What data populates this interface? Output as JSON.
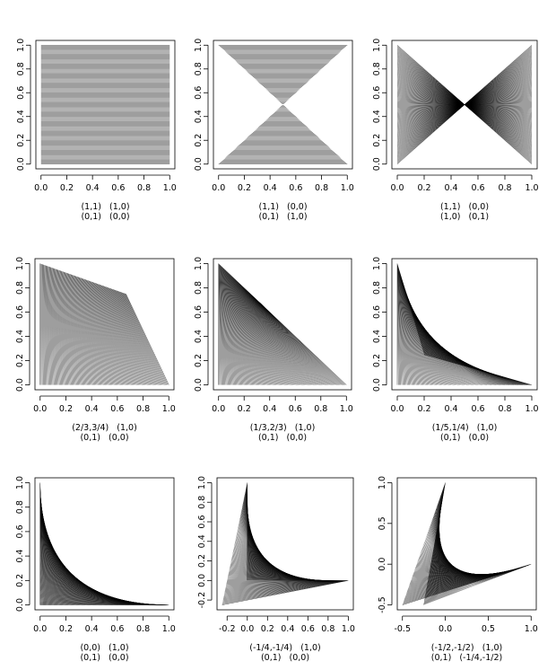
{
  "chart_data": [
    {
      "type": "ruled-surface",
      "id": "p1",
      "xlim": [
        0,
        1
      ],
      "ylim": [
        0,
        1
      ],
      "xticks": [
        "0.0",
        "0.2",
        "0.4",
        "0.6",
        "0.8",
        "1.0"
      ],
      "yticks": [
        "0.0",
        "0.2",
        "0.4",
        "0.6",
        "0.8",
        "1.0"
      ],
      "xtick_values": [
        0,
        0.2,
        0.4,
        0.6,
        0.8,
        1.0
      ],
      "ytick_values": [
        0,
        0.2,
        0.4,
        0.6,
        0.8,
        1.0
      ],
      "corners": {
        "top_left": [
          0,
          1
        ],
        "top_right": [
          1,
          1
        ],
        "bottom_left": [
          0,
          0
        ],
        "bottom_right": [
          1,
          0
        ]
      },
      "caption": [
        "(1,1)   (1,0)",
        "(0,1)   (0,0)"
      ]
    },
    {
      "type": "ruled-surface",
      "id": "p2",
      "xlim": [
        0,
        1
      ],
      "ylim": [
        0,
        1
      ],
      "xticks": [
        "0.0",
        "0.2",
        "0.4",
        "0.6",
        "0.8",
        "1.0"
      ],
      "yticks": [
        "0.0",
        "0.2",
        "0.4",
        "0.6",
        "0.8",
        "1.0"
      ],
      "xtick_values": [
        0,
        0.2,
        0.4,
        0.6,
        0.8,
        1.0
      ],
      "ytick_values": [
        0,
        0.2,
        0.4,
        0.6,
        0.8,
        1.0
      ],
      "corners": {
        "top_left": [
          0,
          1
        ],
        "top_right": [
          1,
          1
        ],
        "bottom_left": [
          1,
          0
        ],
        "bottom_right": [
          0,
          0
        ]
      },
      "caption": [
        "(1,1)   (0,0)",
        "(0,1)   (1,0)"
      ]
    },
    {
      "type": "ruled-surface",
      "id": "p3",
      "xlim": [
        0,
        1
      ],
      "ylim": [
        0,
        1
      ],
      "xticks": [
        "0.0",
        "0.2",
        "0.4",
        "0.6",
        "0.8",
        "1.0"
      ],
      "yticks": [
        "0.0",
        "0.2",
        "0.4",
        "0.6",
        "0.8",
        "1.0"
      ],
      "xtick_values": [
        0,
        0.2,
        0.4,
        0.6,
        0.8,
        1.0
      ],
      "ytick_values": [
        0,
        0.2,
        0.4,
        0.6,
        0.8,
        1.0
      ],
      "corners": {
        "top_left": [
          0,
          1
        ],
        "top_right": [
          1,
          0
        ],
        "bottom_left": [
          0,
          0
        ],
        "bottom_right": [
          1,
          1
        ]
      },
      "caption": [
        "(1,1)   (0,0)",
        "(1,0)   (0,1)"
      ]
    },
    {
      "type": "ruled-surface",
      "id": "p4",
      "xlim": [
        0,
        1
      ],
      "ylim": [
        0,
        1
      ],
      "xticks": [
        "0.0",
        "0.2",
        "0.4",
        "0.6",
        "0.8",
        "1.0"
      ],
      "yticks": [
        "0.0",
        "0.2",
        "0.4",
        "0.6",
        "0.8",
        "1.0"
      ],
      "xtick_values": [
        0,
        0.2,
        0.4,
        0.6,
        0.8,
        1.0
      ],
      "ytick_values": [
        0,
        0.2,
        0.4,
        0.6,
        0.8,
        1.0
      ],
      "corners": {
        "top_left": [
          0.6667,
          0.75
        ],
        "top_right": [
          1,
          0
        ],
        "bottom_left": [
          0,
          1
        ],
        "bottom_right": [
          0,
          0
        ]
      },
      "caption": [
        "(2/3,3/4)   (1,0)",
        "(0,1)   (0,0)"
      ]
    },
    {
      "type": "ruled-surface",
      "id": "p5",
      "xlim": [
        0,
        1
      ],
      "ylim": [
        0,
        1
      ],
      "xticks": [
        "0.0",
        "0.2",
        "0.4",
        "0.6",
        "0.8",
        "1.0"
      ],
      "yticks": [
        "0.0",
        "0.2",
        "0.4",
        "0.6",
        "0.8",
        "1.0"
      ],
      "xtick_values": [
        0,
        0.2,
        0.4,
        0.6,
        0.8,
        1.0
      ],
      "ytick_values": [
        0,
        0.2,
        0.4,
        0.6,
        0.8,
        1.0
      ],
      "corners": {
        "top_left": [
          0.3333,
          0.6667
        ],
        "top_right": [
          1,
          0
        ],
        "bottom_left": [
          0,
          1
        ],
        "bottom_right": [
          0,
          0
        ]
      },
      "caption": [
        "(1/3,2/3)   (1,0)",
        "(0,1)   (0,0)"
      ]
    },
    {
      "type": "ruled-surface",
      "id": "p6",
      "xlim": [
        0,
        1
      ],
      "ylim": [
        0,
        1
      ],
      "xticks": [
        "0.0",
        "0.2",
        "0.4",
        "0.6",
        "0.8",
        "1.0"
      ],
      "yticks": [
        "0.0",
        "0.2",
        "0.4",
        "0.6",
        "0.8",
        "1.0"
      ],
      "xtick_values": [
        0,
        0.2,
        0.4,
        0.6,
        0.8,
        1.0
      ],
      "ytick_values": [
        0,
        0.2,
        0.4,
        0.6,
        0.8,
        1.0
      ],
      "corners": {
        "top_left": [
          0.2,
          0.25
        ],
        "top_right": [
          1,
          0
        ],
        "bottom_left": [
          0,
          1
        ],
        "bottom_right": [
          0,
          0
        ]
      },
      "caption": [
        "(1/5,1/4)   (1,0)",
        "(0,1)   (0,0)"
      ]
    },
    {
      "type": "ruled-surface",
      "id": "p7",
      "xlim": [
        0,
        1
      ],
      "ylim": [
        0,
        1
      ],
      "xticks": [
        "0.0",
        "0.2",
        "0.4",
        "0.6",
        "0.8",
        "1.0"
      ],
      "yticks": [
        "0.0",
        "0.2",
        "0.4",
        "0.6",
        "0.8",
        "1.0"
      ],
      "xtick_values": [
        0,
        0.2,
        0.4,
        0.6,
        0.8,
        1.0
      ],
      "ytick_values": [
        0,
        0.2,
        0.4,
        0.6,
        0.8,
        1.0
      ],
      "corners": {
        "top_left": [
          0,
          0
        ],
        "top_right": [
          1,
          0
        ],
        "bottom_left": [
          0,
          1
        ],
        "bottom_right": [
          0,
          0
        ]
      },
      "caption": [
        "(0,0)   (1,0)",
        "(0,1)   (0,0)"
      ]
    },
    {
      "type": "ruled-surface",
      "id": "p8",
      "xlim": [
        -0.25,
        1
      ],
      "ylim": [
        -0.25,
        1
      ],
      "xticks": [
        "-0.2",
        "0.0",
        "0.2",
        "0.4",
        "0.6",
        "0.8",
        "1.0"
      ],
      "yticks": [
        "-0.2",
        "0.0",
        "0.2",
        "0.4",
        "0.6",
        "0.8",
        "1.0"
      ],
      "xtick_values": [
        -0.2,
        0,
        0.2,
        0.4,
        0.6,
        0.8,
        1.0
      ],
      "ytick_values": [
        -0.2,
        0,
        0.2,
        0.4,
        0.6,
        0.8,
        1.0
      ],
      "corners": {
        "top_left": [
          -0.25,
          -0.25
        ],
        "top_right": [
          1,
          0
        ],
        "bottom_left": [
          0,
          1
        ],
        "bottom_right": [
          0,
          0
        ]
      },
      "caption": [
        "(-1/4,-1/4)   (1,0)",
        "(0,1)   (0,0)"
      ]
    },
    {
      "type": "ruled-surface",
      "id": "p9",
      "xlim": [
        -0.5,
        1
      ],
      "ylim": [
        -0.5,
        1
      ],
      "xticks": [
        "-0.5",
        "0.0",
        "0.5",
        "1.0"
      ],
      "yticks": [
        "-0.5",
        "0.0",
        "0.5",
        "1.0"
      ],
      "xtick_values": [
        -0.5,
        0,
        0.5,
        1.0
      ],
      "ytick_values": [
        -0.5,
        0,
        0.5,
        1.0
      ],
      "corners": {
        "top_left": [
          -0.5,
          -0.5
        ],
        "top_right": [
          1,
          0
        ],
        "bottom_left": [
          0,
          1
        ],
        "bottom_right": [
          -0.25,
          -0.5
        ]
      },
      "caption": [
        "(-1/2,-1/2)   (1,0)",
        "(0,1)   (-1/4,-1/2)"
      ]
    }
  ]
}
